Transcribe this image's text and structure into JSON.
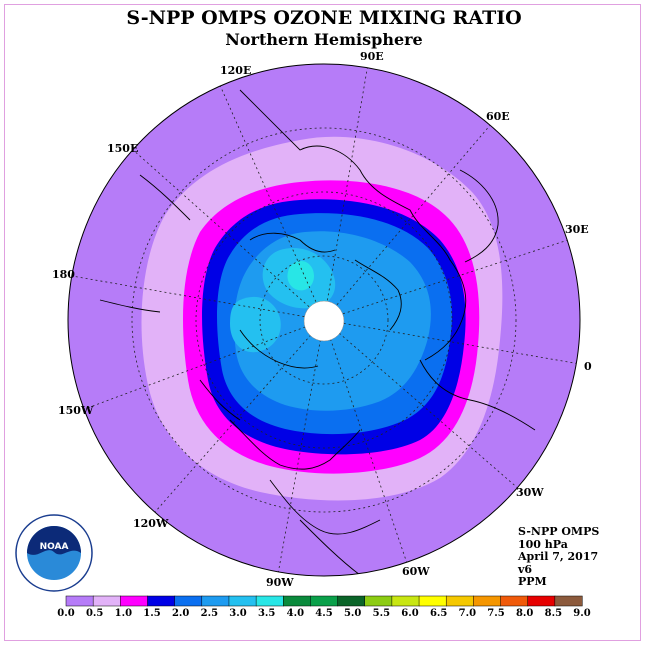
{
  "title": "S-NPP OMPS OZONE MIXING RATIO",
  "subtitle": "Northern Hemisphere",
  "longitude_labels": [
    "90E",
    "60E",
    "120E",
    "150E",
    "30E",
    "180",
    "0",
    "150W",
    "30W",
    "120W",
    "60W",
    "90W"
  ],
  "info": {
    "instrument": "S-NPP OMPS",
    "level": "100 hPa",
    "date": "April 7, 2017",
    "version": "v6",
    "units": "PPM"
  },
  "colorbar": {
    "ticks": [
      "0.0",
      "0.5",
      "1.0",
      "1.5",
      "2.0",
      "2.5",
      "3.0",
      "3.5",
      "4.0",
      "4.5",
      "5.0",
      "5.5",
      "6.0",
      "6.5",
      "7.0",
      "7.5",
      "8.0",
      "8.5",
      "9.0"
    ],
    "colors": [
      "#b67cf8",
      "#e2b2f8",
      "#ff00ff",
      "#0000e6",
      "#0a6ff0",
      "#1e9bf0",
      "#24c0f0",
      "#28e6e6",
      "#0a8a3c",
      "#0aa04a",
      "#0a6428",
      "#8ccc12",
      "#c8e612",
      "#ffff00",
      "#f5c800",
      "#f59600",
      "#f05a0a",
      "#e60000",
      "#8c5a3c"
    ]
  },
  "logo": {
    "text": "NOAA",
    "ring_text": "NATIONAL OCEANIC AND ATMOSPHERIC ADMINISTRATION · U.S. DEPARTMENT OF COMMERCE"
  }
}
